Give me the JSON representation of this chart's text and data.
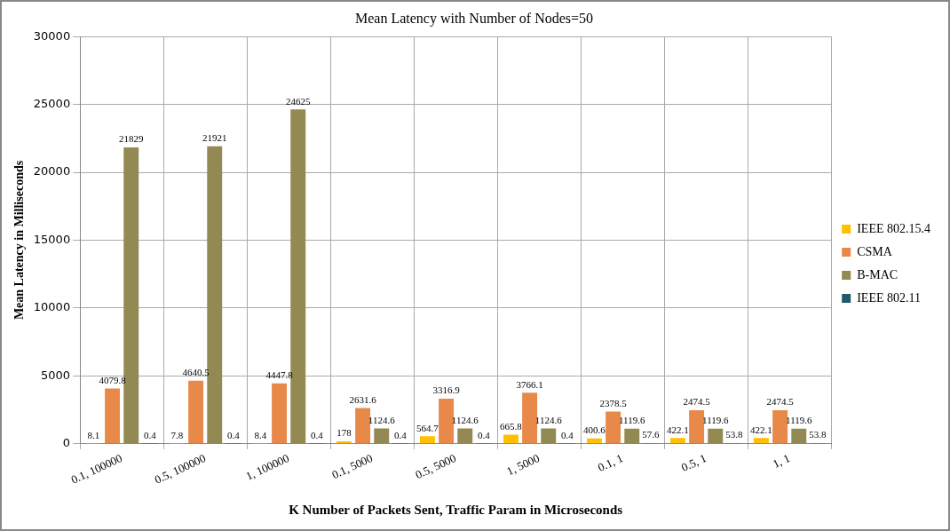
{
  "chart_data": {
    "type": "bar",
    "title": "Mean Latency with Number of Nodes=50",
    "xlabel": "K Number of Packets Sent, Traffic Param in Microseconds",
    "ylabel": "Mean Latency in Milliseconds",
    "categories": [
      "0.1, 100000",
      "0.5, 100000",
      "1, 100000",
      "0.1, 5000",
      "0.5, 5000",
      "1, 5000",
      "0.1, 1",
      "0.5, 1",
      "1, 1"
    ],
    "series": [
      {
        "name": "IEEE 802.15.4",
        "color": "#ffc000",
        "values": [
          8.1,
          7.8,
          8.4,
          178,
          564.7,
          665.8,
          400.6,
          422.1,
          422.1
        ]
      },
      {
        "name": "CSMA",
        "color": "#e8894a",
        "values": [
          4079.8,
          4640.5,
          4447.8,
          2631.6,
          3316.9,
          3766.1,
          2378.5,
          2474.5,
          2474.5
        ]
      },
      {
        "name": "B-MAC",
        "color": "#938953",
        "values": [
          21829,
          21921,
          24625,
          1124.6,
          1124.6,
          1124.6,
          1119.6,
          1119.6,
          1119.6
        ]
      },
      {
        "name": "IEEE 802.11",
        "color": "#215968",
        "values": [
          0.4,
          0.4,
          0.4,
          0.4,
          0.4,
          0.4,
          57.6,
          53.8,
          53.8
        ]
      }
    ],
    "ylim": [
      0,
      30000
    ],
    "yticks": [
      0,
      5000,
      10000,
      15000,
      20000,
      25000,
      30000
    ],
    "grid": true,
    "legend": "right",
    "data_labels": true
  }
}
